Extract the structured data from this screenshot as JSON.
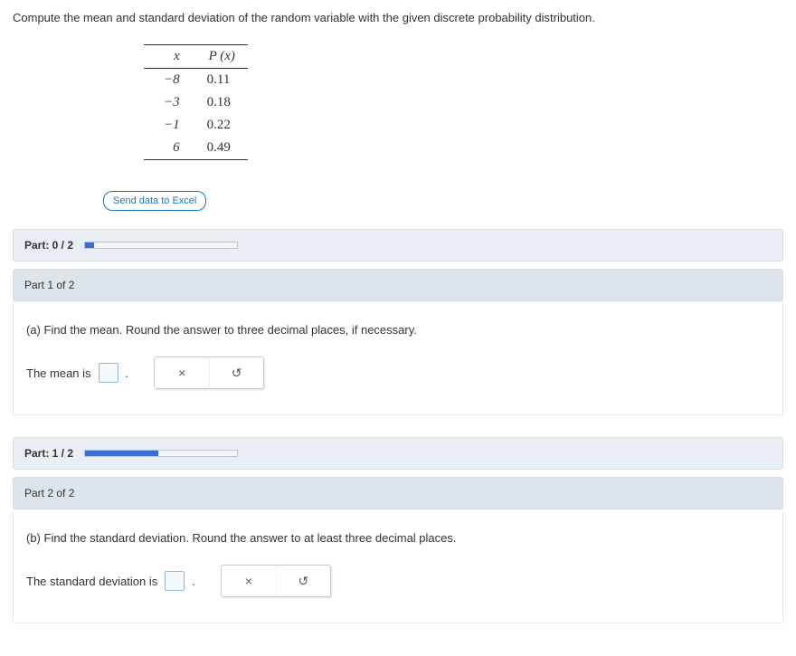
{
  "prompt": "Compute the mean and standard deviation of the random variable with the given discrete probability distribution.",
  "table": {
    "header_x": "x",
    "header_px": "P (x)",
    "rows": [
      {
        "x": "−8",
        "px": "0.11"
      },
      {
        "x": "−3",
        "px": "0.18"
      },
      {
        "x": "−1",
        "px": "0.22"
      },
      {
        "x": "6",
        "px": "0.49"
      }
    ]
  },
  "excel_button": "Send data to Excel",
  "parts": {
    "bar0": {
      "label": "Part: 0 / 2",
      "progress_pct": 6
    },
    "p1": {
      "header": "Part 1 of 2",
      "question": "(a) Find the mean. Round the answer to three decimal places, if necessary.",
      "answer_label_pre": "The mean is",
      "answer_label_post": ".",
      "clear_icon": "×",
      "reset_icon": "↺"
    },
    "bar1": {
      "label": "Part: 1 / 2",
      "progress_pct": 48
    },
    "p2": {
      "header": "Part 2 of 2",
      "question": "(b) Find the standard deviation. Round the answer to at least three decimal places.",
      "answer_label_pre": "The standard deviation is",
      "answer_label_post": ".",
      "clear_icon": "×",
      "reset_icon": "↺"
    }
  },
  "colors": {
    "bar_bg": "#e8eef4",
    "header_bg": "#dde4ea",
    "accent": "#3a6fd8",
    "input_border": "#8fb8e0"
  }
}
